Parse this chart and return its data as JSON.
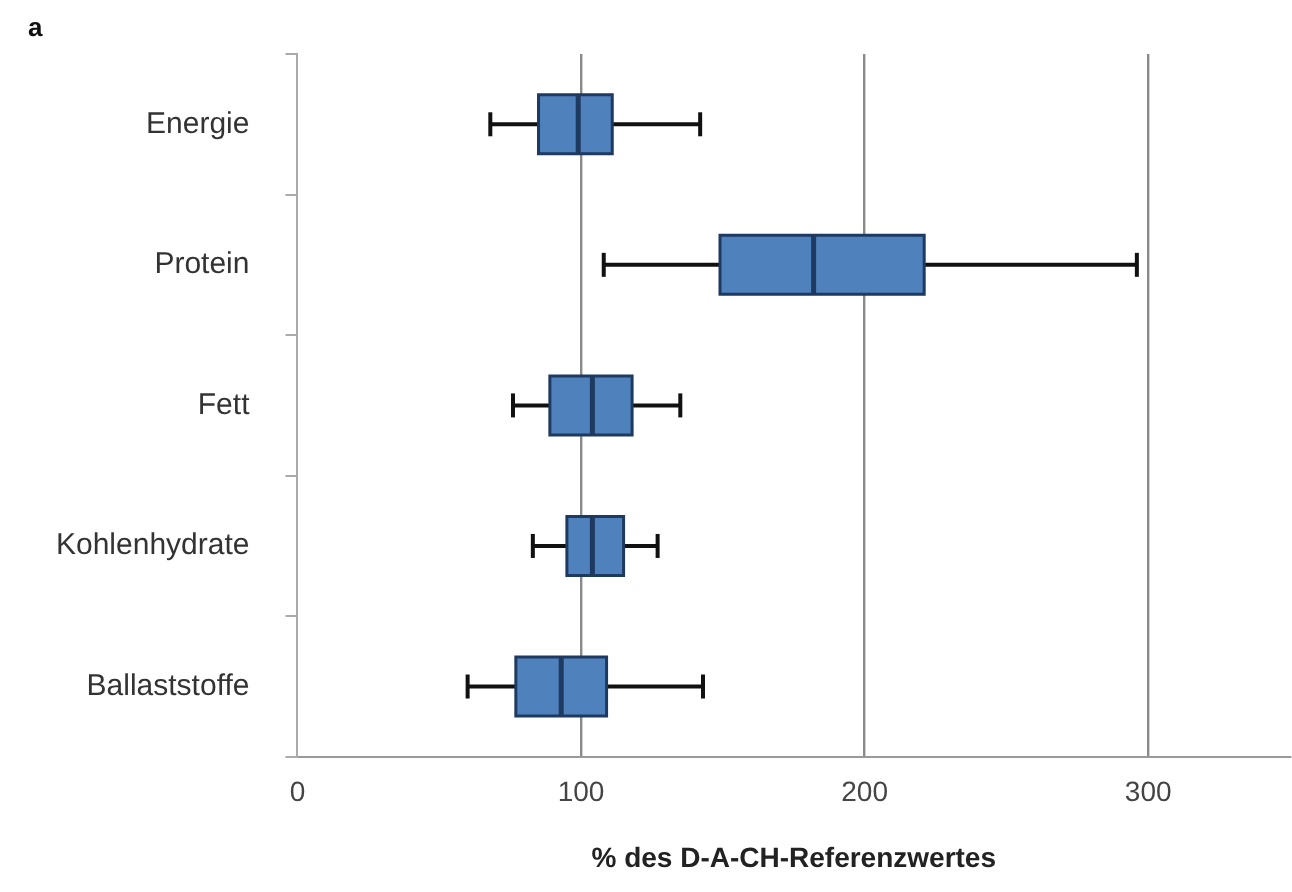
{
  "chart_data": {
    "type": "box",
    "orientation": "horizontal",
    "categories": [
      "Energie",
      "Protein",
      "Fett",
      "Kohlenhydrate",
      "Ballaststoffe"
    ],
    "boxes": [
      {
        "low": 68,
        "q1": 85,
        "median": 99,
        "q3": 111,
        "high": 142
      },
      {
        "low": 108,
        "q1": 149,
        "median": 182,
        "q3": 221,
        "high": 296
      },
      {
        "low": 76,
        "q1": 89,
        "median": 104,
        "q3": 118,
        "high": 135
      },
      {
        "low": 83,
        "q1": 95,
        "median": 104,
        "q3": 115,
        "high": 127
      },
      {
        "low": 60,
        "q1": 77,
        "median": 93,
        "q3": 109,
        "high": 143
      }
    ],
    "color": "#4f81bd",
    "xlabel": "% des D-A-CH-Referenzwertes",
    "xlim": [
      0,
      350
    ],
    "xticks": [
      0,
      100,
      200,
      300
    ],
    "grid": "x",
    "annotations": [
      "a"
    ]
  }
}
